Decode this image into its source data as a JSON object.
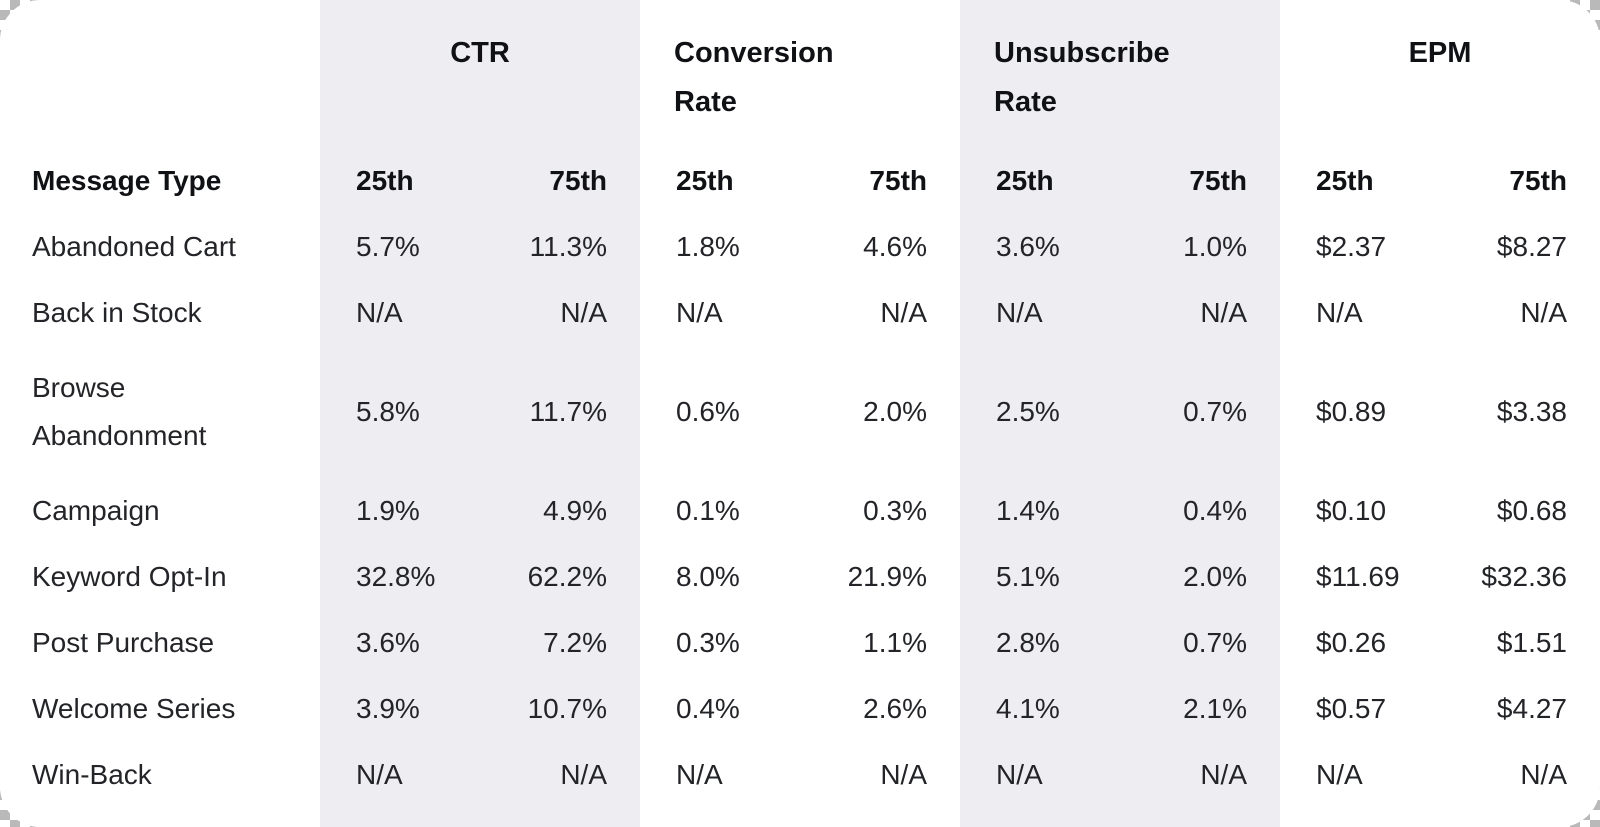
{
  "chart_data": {
    "type": "table",
    "title": "",
    "corner_label": "Message Type",
    "groups": [
      "CTR",
      "Conversion Rate",
      "Unsubscribe Rate",
      "EPM"
    ],
    "sub_columns": [
      "25th",
      "75th"
    ],
    "rows": [
      {
        "label": "Abandoned Cart",
        "values": [
          "5.7%",
          "11.3%",
          "1.8%",
          "4.6%",
          "3.6%",
          "1.0%",
          "$2.37",
          "$8.27"
        ]
      },
      {
        "label": "Back in Stock",
        "values": [
          "N/A",
          "N/A",
          "N/A",
          "N/A",
          "N/A",
          "N/A",
          "N/A",
          "N/A"
        ]
      },
      {
        "label": "Browse Abandonment",
        "values": [
          "5.8%",
          "11.7%",
          "0.6%",
          "2.0%",
          "2.5%",
          "0.7%",
          "$0.89",
          "$3.38"
        ]
      },
      {
        "label": "Campaign",
        "values": [
          "1.9%",
          "4.9%",
          "0.1%",
          "0.3%",
          "1.4%",
          "0.4%",
          "$0.10",
          "$0.68"
        ]
      },
      {
        "label": "Keyword Opt-In",
        "values": [
          "32.8%",
          "62.2%",
          "8.0%",
          "21.9%",
          "5.1%",
          "2.0%",
          "$11.69",
          "$32.36"
        ]
      },
      {
        "label": "Post Purchase",
        "values": [
          "3.6%",
          "7.2%",
          "0.3%",
          "1.1%",
          "2.8%",
          "0.7%",
          "$0.26",
          "$1.51"
        ]
      },
      {
        "label": "Welcome Series",
        "values": [
          "3.9%",
          "10.7%",
          "0.4%",
          "2.6%",
          "4.1%",
          "2.1%",
          "$0.57",
          "$4.27"
        ]
      },
      {
        "label": "Win-Back",
        "values": [
          "N/A",
          "N/A",
          "N/A",
          "N/A",
          "N/A",
          "N/A",
          "N/A",
          "N/A"
        ]
      }
    ],
    "layout_hints": {
      "shaded_column_groups": [
        "CTR",
        "Unsubscribe Rate"
      ],
      "grid": false,
      "legend_position": "none"
    }
  },
  "colors": {
    "card_background": "#ffffff",
    "column_stripe": "#ededf2",
    "header_text": "#101114",
    "body_text": "#232428"
  }
}
